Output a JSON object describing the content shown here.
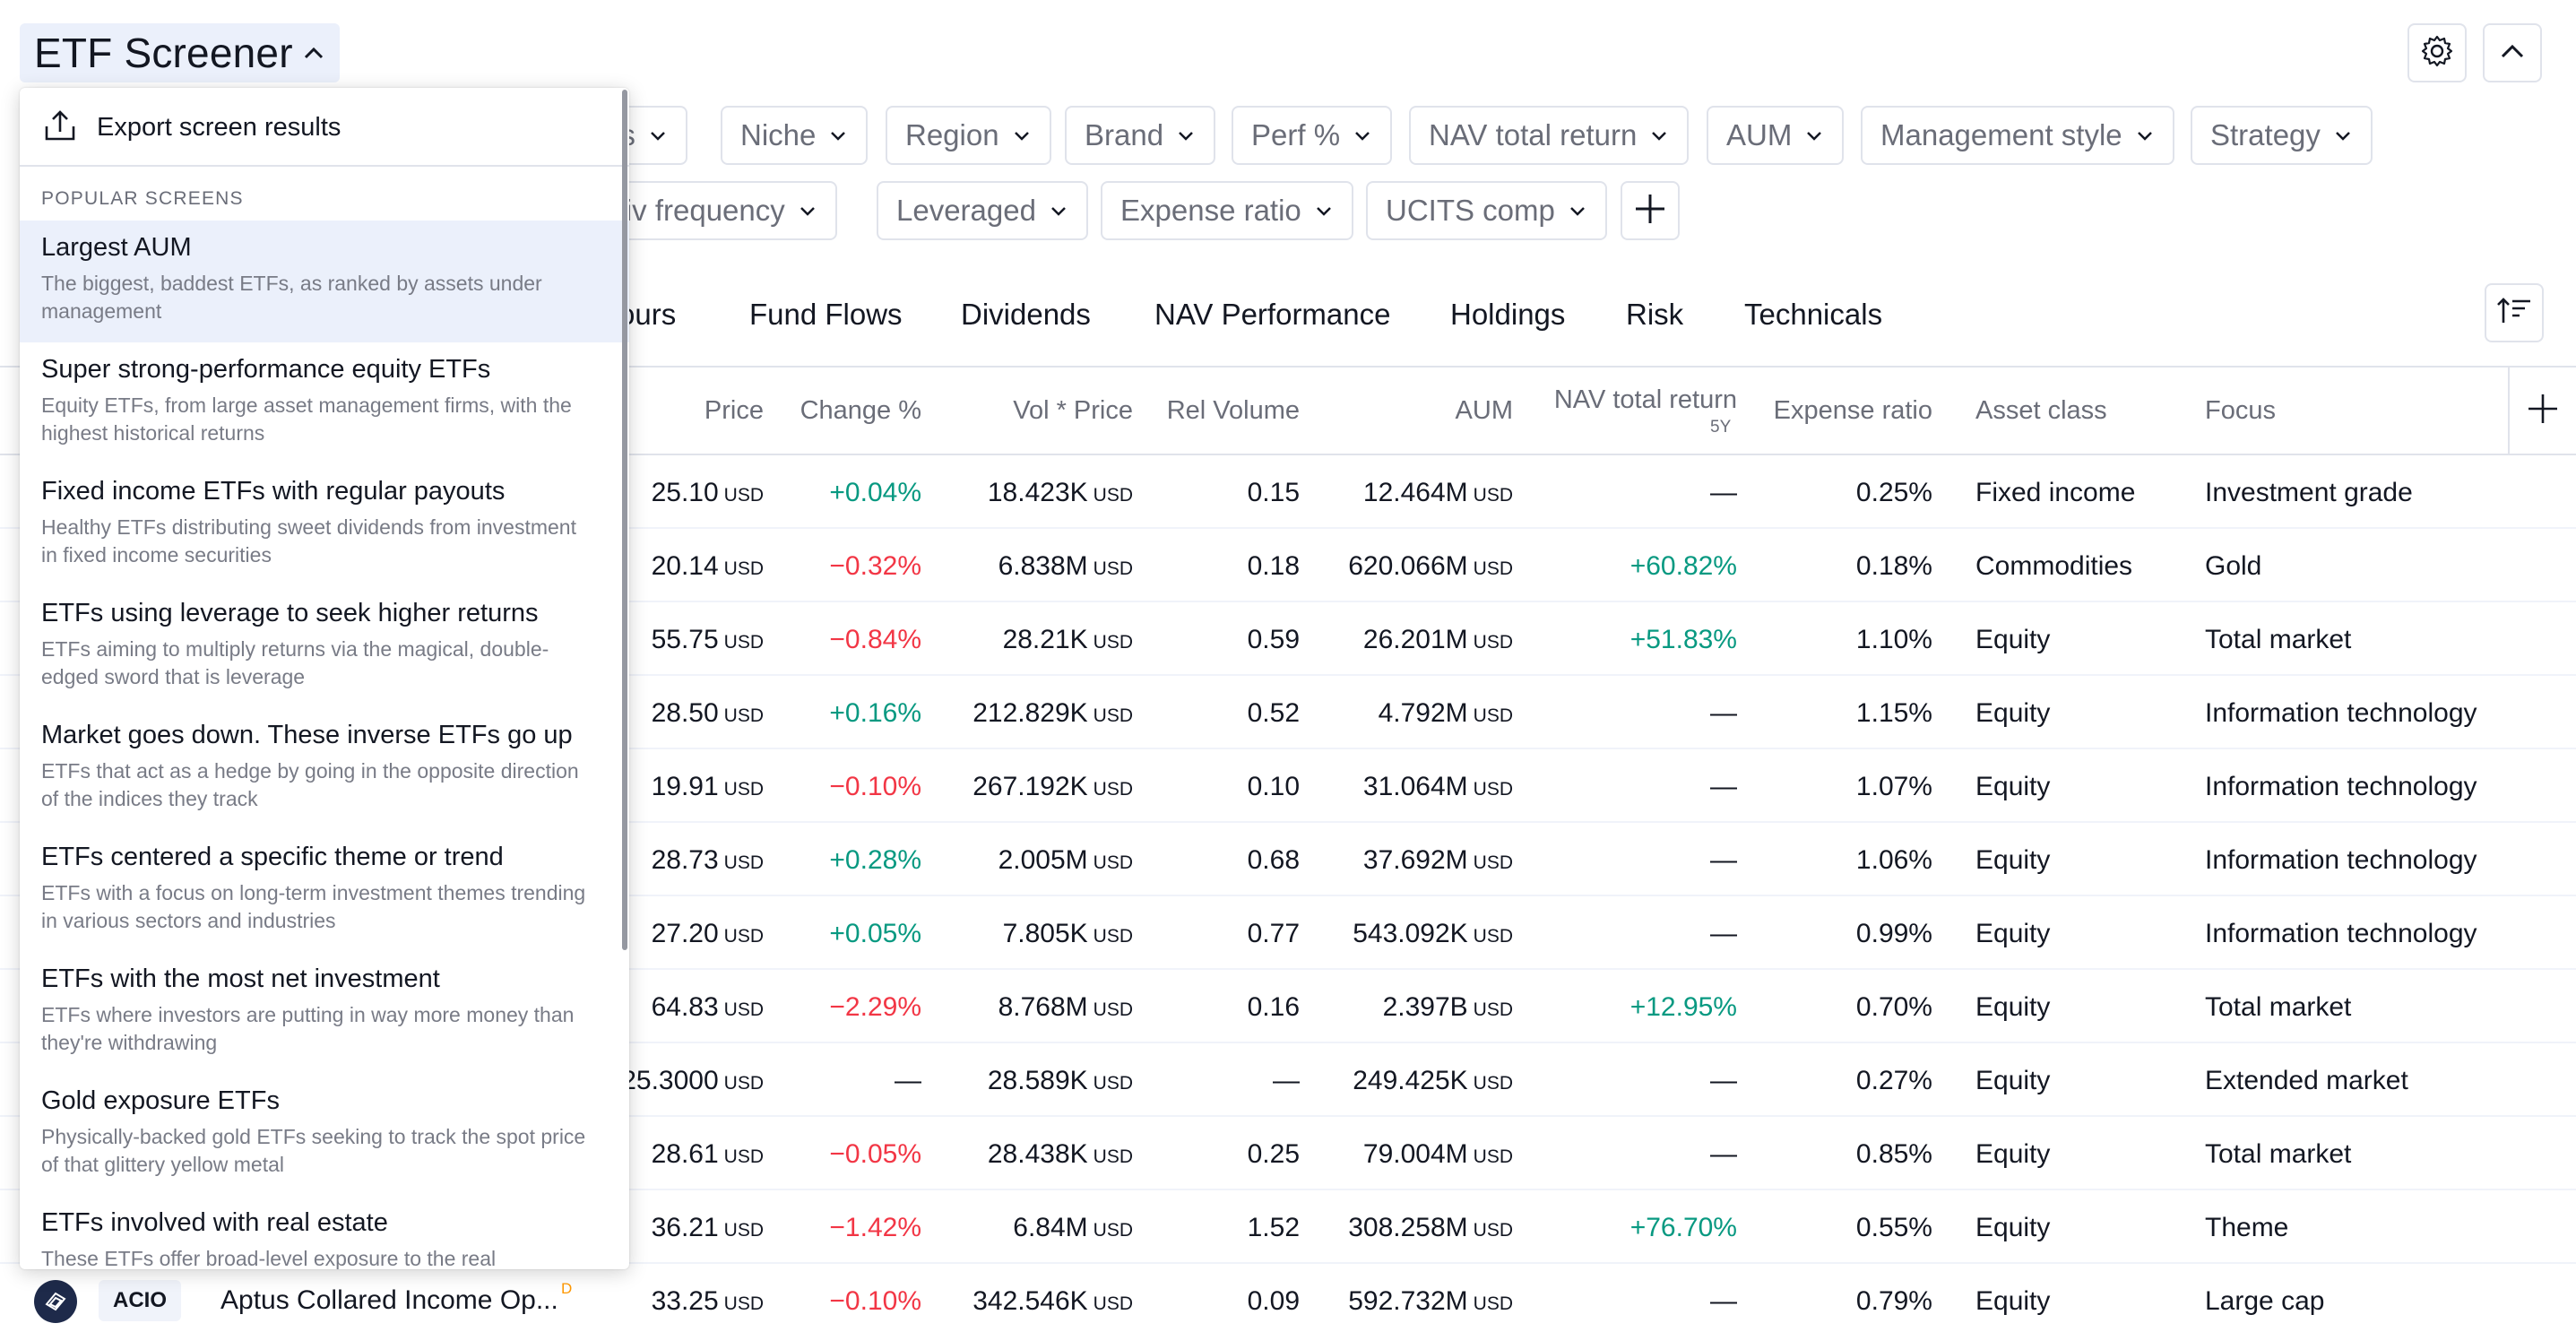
{
  "header": {
    "title": "ETF Screener",
    "settings_icon": "gear-icon",
    "collapse_icon": "chevron-up-icon"
  },
  "filters": {
    "row1": [
      "us",
      "Niche",
      "Region",
      "Brand",
      "Perf %",
      "NAV total return",
      "AUM",
      "Management style",
      "Strategy"
    ],
    "row2": [
      "Div frequency",
      "Leveraged",
      "Expense ratio",
      "UCITS comp"
    ]
  },
  "tabs": [
    "ours",
    "Fund Flows",
    "Dividends",
    "NAV Performance",
    "Holdings",
    "Risk",
    "Technicals"
  ],
  "table": {
    "headers": {
      "price": "Price",
      "change": "Change %",
      "volprice": "Vol * Price",
      "relvol": "Rel Volume",
      "aum": "AUM",
      "nav": "NAV total return",
      "nav_sub": "5Y",
      "expense": "Expense ratio",
      "asset": "Asset class",
      "focus": "Focus"
    },
    "rows": [
      {
        "price": "25.10",
        "price_u": "USD",
        "change": "+0.04%",
        "dir": "pos",
        "volprice": "18.423K",
        "volprice_u": "USD",
        "relvol": "0.15",
        "aum": "12.464M",
        "aum_u": "USD",
        "nav": "—",
        "nav_dir": "",
        "expense": "0.25%",
        "asset": "Fixed income",
        "focus": "Investment grade"
      },
      {
        "price": "20.14",
        "price_u": "USD",
        "change": "−0.32%",
        "dir": "neg",
        "volprice": "6.838M",
        "volprice_u": "USD",
        "relvol": "0.18",
        "aum": "620.066M",
        "aum_u": "USD",
        "nav": "+60.82%",
        "nav_dir": "pos",
        "expense": "0.18%",
        "asset": "Commodities",
        "focus": "Gold"
      },
      {
        "price": "55.75",
        "price_u": "USD",
        "change": "−0.84%",
        "dir": "neg",
        "volprice": "28.21K",
        "volprice_u": "USD",
        "relvol": "0.59",
        "aum": "26.201M",
        "aum_u": "USD",
        "nav": "+51.83%",
        "nav_dir": "pos",
        "expense": "1.10%",
        "asset": "Equity",
        "focus": "Total market"
      },
      {
        "price": "28.50",
        "price_u": "USD",
        "change": "+0.16%",
        "dir": "pos",
        "volprice": "212.829K",
        "volprice_u": "USD",
        "relvol": "0.52",
        "aum": "4.792M",
        "aum_u": "USD",
        "nav": "—",
        "nav_dir": "",
        "expense": "1.15%",
        "asset": "Equity",
        "focus": "Information technology"
      },
      {
        "price": "19.91",
        "price_u": "USD",
        "change": "−0.10%",
        "dir": "neg",
        "volprice": "267.192K",
        "volprice_u": "USD",
        "relvol": "0.10",
        "aum": "31.064M",
        "aum_u": "USD",
        "nav": "—",
        "nav_dir": "",
        "expense": "1.07%",
        "asset": "Equity",
        "focus": "Information technology"
      },
      {
        "price": "28.73",
        "price_u": "USD",
        "change": "+0.28%",
        "dir": "pos",
        "volprice": "2.005M",
        "volprice_u": "USD",
        "relvol": "0.68",
        "aum": "37.692M",
        "aum_u": "USD",
        "nav": "—",
        "nav_dir": "",
        "expense": "1.06%",
        "asset": "Equity",
        "focus": "Information technology"
      },
      {
        "price": "27.20",
        "price_u": "USD",
        "change": "+0.05%",
        "dir": "pos",
        "volprice": "7.805K",
        "volprice_u": "USD",
        "relvol": "0.77",
        "aum": "543.092K",
        "aum_u": "USD",
        "nav": "—",
        "nav_dir": "",
        "expense": "0.99%",
        "asset": "Equity",
        "focus": "Information technology"
      },
      {
        "price": "64.83",
        "price_u": "USD",
        "change": "−2.29%",
        "dir": "neg",
        "volprice": "8.768M",
        "volprice_u": "USD",
        "relvol": "0.16",
        "aum": "2.397B",
        "aum_u": "USD",
        "nav": "+12.95%",
        "nav_dir": "pos",
        "expense": "0.70%",
        "asset": "Equity",
        "focus": "Total market"
      },
      {
        "price": "25.3000",
        "price_u": "USD",
        "change": "—",
        "dir": "",
        "volprice": "28.589K",
        "volprice_u": "USD",
        "relvol": "—",
        "aum": "249.425K",
        "aum_u": "USD",
        "nav": "—",
        "nav_dir": "",
        "expense": "0.27%",
        "asset": "Equity",
        "focus": "Extended market"
      },
      {
        "price": "28.61",
        "price_u": "USD",
        "change": "−0.05%",
        "dir": "neg",
        "volprice": "28.438K",
        "volprice_u": "USD",
        "relvol": "0.25",
        "aum": "79.004M",
        "aum_u": "USD",
        "nav": "—",
        "nav_dir": "",
        "expense": "0.85%",
        "asset": "Equity",
        "focus": "Total market"
      },
      {
        "price": "36.21",
        "price_u": "USD",
        "change": "−1.42%",
        "dir": "neg",
        "volprice": "6.84M",
        "volprice_u": "USD",
        "relvol": "1.52",
        "aum": "308.258M",
        "aum_u": "USD",
        "nav": "+76.70%",
        "nav_dir": "pos",
        "expense": "0.55%",
        "asset": "Equity",
        "focus": "Theme"
      },
      {
        "price": "33.25",
        "price_u": "USD",
        "change": "−0.10%",
        "dir": "neg",
        "volprice": "342.546K",
        "volprice_u": "USD",
        "relvol": "0.09",
        "aum": "592.732M",
        "aum_u": "USD",
        "nav": "—",
        "nav_dir": "",
        "expense": "0.79%",
        "asset": "Equity",
        "focus": "Large cap"
      }
    ],
    "bottom_row": {
      "ticker": "ACIO",
      "name": "Aptus Collared Income Op...",
      "flag": "D"
    }
  },
  "menu": {
    "export_label": "Export screen results",
    "section_title": "POPULAR SCREENS",
    "items": [
      {
        "title": "Largest AUM",
        "desc": "The biggest, baddest ETFs, as ranked by assets under management"
      },
      {
        "title": "Super strong-performance equity ETFs",
        "desc": "Equity ETFs, from large asset management firms, with the highest historical returns"
      },
      {
        "title": "Fixed income ETFs with regular payouts",
        "desc": "Healthy ETFs distributing sweet dividends from investment in fixed income securities"
      },
      {
        "title": "ETFs using leverage to seek higher returns",
        "desc": "ETFs aiming to multiply returns via the magical, double-edged sword that is leverage"
      },
      {
        "title": "Market goes down. These inverse ETFs go up",
        "desc": "ETFs that act as a hedge by going in the opposite direction of the indices they track"
      },
      {
        "title": "ETFs centered a specific theme or trend",
        "desc": "ETFs with a focus on long-term investment themes trending in various sectors and industries"
      },
      {
        "title": "ETFs with the most net investment",
        "desc": "ETFs where investors are putting in way more money than they're withdrawing"
      },
      {
        "title": "Gold exposure ETFs",
        "desc": "Physically-backed gold ETFs seeking to track the spot price of that glittery yellow metal"
      },
      {
        "title": "ETFs involved with real estate",
        "desc": "These ETFs offer broad-level exposure to the real"
      }
    ]
  },
  "colors": {
    "positive": "#089981",
    "negative": "#f23645",
    "highlight": "#ebf0fb"
  }
}
